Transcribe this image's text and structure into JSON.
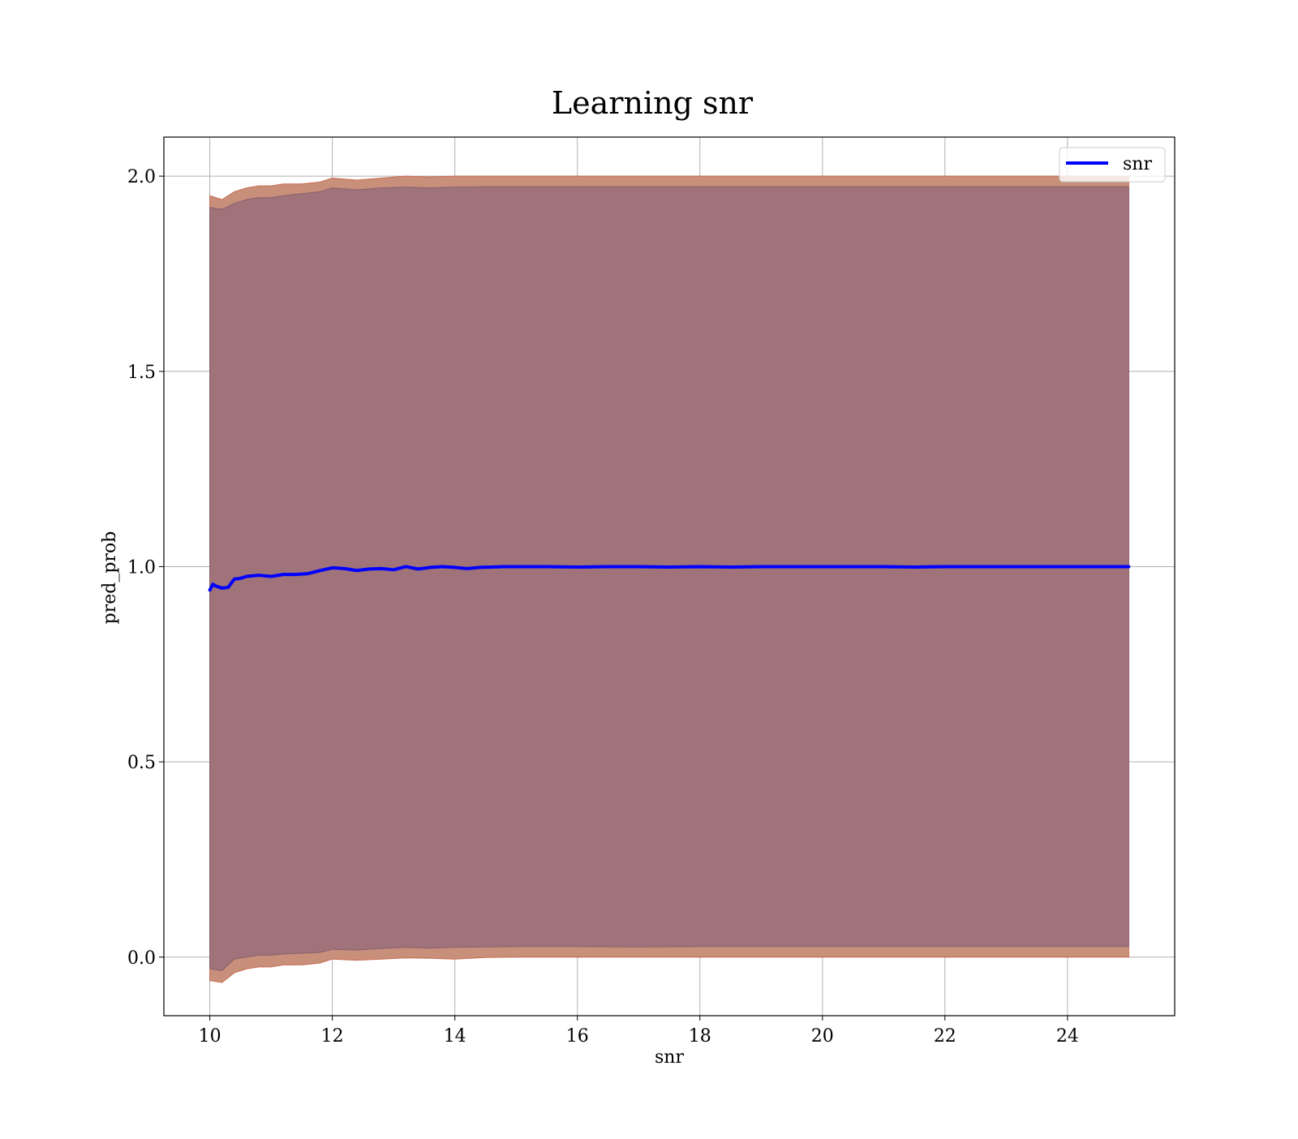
{
  "chart_data": {
    "type": "line",
    "title": "Learning snr",
    "xlabel": "snr",
    "ylabel": "pred_prob",
    "xlim": [
      9.25,
      25.75
    ],
    "ylim": [
      -0.15,
      2.1
    ],
    "x_ticks": [
      10,
      12,
      14,
      16,
      18,
      20,
      22,
      24
    ],
    "y_ticks": [
      0.0,
      0.5,
      1.0,
      1.5,
      2.0
    ],
    "x_tick_labels": [
      "10",
      "12",
      "14",
      "16",
      "18",
      "20",
      "22",
      "24"
    ],
    "y_tick_labels": [
      "0.0",
      "0.5",
      "1.0",
      "1.5",
      "2.0"
    ],
    "grid": true,
    "legend_position": "upper right",
    "series": [
      {
        "name": "snr",
        "color": "#0000ff",
        "x": [
          10.0,
          10.05,
          10.1,
          10.2,
          10.3,
          10.4,
          10.5,
          10.6,
          10.8,
          11.0,
          11.2,
          11.4,
          11.6,
          11.8,
          12.0,
          12.2,
          12.4,
          12.6,
          12.8,
          13.0,
          13.2,
          13.4,
          13.6,
          13.8,
          14.0,
          14.2,
          14.4,
          14.6,
          14.8,
          15.0,
          15.5,
          16.0,
          16.5,
          17.0,
          17.5,
          18.0,
          18.5,
          19.0,
          19.5,
          20.0,
          20.5,
          21.0,
          21.5,
          22.0,
          22.5,
          23.0,
          23.5,
          24.0,
          24.5,
          25.0
        ],
        "y": [
          0.94,
          0.955,
          0.95,
          0.945,
          0.947,
          0.968,
          0.97,
          0.975,
          0.978,
          0.975,
          0.98,
          0.98,
          0.982,
          0.99,
          0.997,
          0.995,
          0.99,
          0.994,
          0.995,
          0.992,
          1.0,
          0.994,
          0.998,
          1.0,
          0.998,
          0.995,
          0.998,
          0.999,
          1.0,
          1.0,
          1.0,
          0.999,
          1.0,
          1.0,
          0.999,
          1.0,
          0.999,
          1.0,
          1.0,
          1.0,
          1.0,
          1.0,
          0.999,
          1.0,
          1.0,
          1.0,
          1.0,
          1.0,
          1.0,
          1.0
        ]
      }
    ],
    "bands": [
      {
        "color": "#c8907a",
        "x": [
          10.0,
          10.2,
          10.4,
          10.6,
          10.8,
          11.0,
          11.2,
          11.5,
          11.8,
          12.0,
          12.4,
          12.8,
          13.2,
          13.6,
          14.0,
          14.5,
          15.0,
          16.0,
          17.0,
          18.0,
          19.0,
          20.0,
          21.0,
          22.0,
          23.0,
          24.0,
          25.0
        ],
        "lower": [
          -0.06,
          -0.065,
          -0.04,
          -0.03,
          -0.025,
          -0.025,
          -0.02,
          -0.02,
          -0.015,
          -0.005,
          -0.008,
          -0.005,
          -0.002,
          -0.003,
          -0.005,
          -0.001,
          0.0,
          0.0,
          0.0,
          0.0,
          0.0,
          0.0,
          0.0,
          0.0,
          0.0,
          0.0,
          0.0
        ],
        "upper": [
          1.95,
          1.94,
          1.96,
          1.97,
          1.975,
          1.975,
          1.98,
          1.98,
          1.985,
          1.995,
          1.99,
          1.995,
          2.0,
          1.998,
          2.0,
          2.0,
          2.0,
          2.0,
          2.0,
          2.0,
          2.0,
          2.0,
          2.0,
          2.0,
          2.0,
          2.0,
          2.0
        ]
      },
      {
        "color": "#a0727a",
        "x": [
          10.0,
          10.2,
          10.4,
          10.6,
          10.8,
          11.0,
          11.2,
          11.5,
          11.8,
          12.0,
          12.4,
          12.8,
          13.2,
          13.6,
          14.0,
          14.5,
          15.0,
          16.0,
          17.0,
          18.0,
          19.0,
          20.0,
          21.0,
          22.0,
          23.0,
          24.0,
          25.0
        ],
        "lower": [
          -0.03,
          -0.035,
          -0.005,
          0.0,
          0.005,
          0.005,
          0.008,
          0.01,
          0.012,
          0.02,
          0.018,
          0.022,
          0.025,
          0.023,
          0.025,
          0.026,
          0.027,
          0.027,
          0.026,
          0.027,
          0.027,
          0.027,
          0.027,
          0.027,
          0.027,
          0.027,
          0.027
        ],
        "upper": [
          1.92,
          1.915,
          1.93,
          1.94,
          1.945,
          1.945,
          1.95,
          1.955,
          1.96,
          1.97,
          1.965,
          1.97,
          1.972,
          1.97,
          1.972,
          1.973,
          1.973,
          1.973,
          1.973,
          1.973,
          1.973,
          1.973,
          1.973,
          1.973,
          1.973,
          1.973,
          1.973
        ]
      }
    ]
  }
}
